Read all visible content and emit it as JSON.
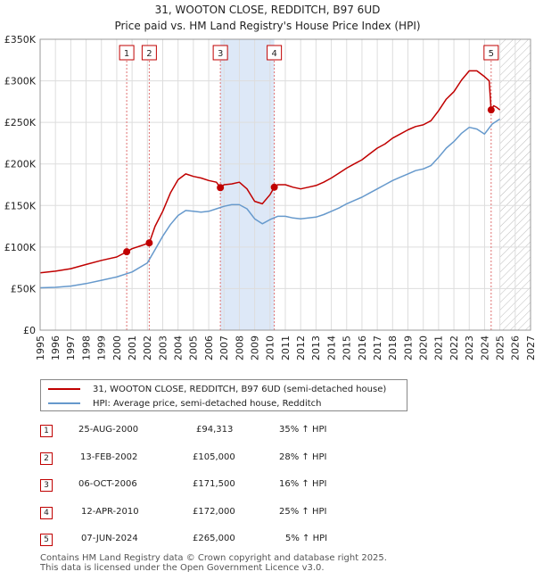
{
  "title": "31, WOOTON CLOSE, REDDITCH, B97 6UD",
  "subtitle": "Price paid vs. HM Land Registry's House Price Index (HPI)",
  "colors": {
    "property": "#c00000",
    "hpi": "#6699cc",
    "shade": "#dde8f7",
    "grid": "#dddddd",
    "marker_line": "#e07070"
  },
  "chart_data": {
    "type": "line",
    "title": "31, WOOTON CLOSE, REDDITCH, B97 6UD",
    "subtitle": "Price paid vs. HM Land Registry's House Price Index (HPI)",
    "xlim": [
      1995,
      2027
    ],
    "ylim": [
      0,
      350000
    ],
    "ytick_values": [
      0,
      50000,
      100000,
      150000,
      200000,
      250000,
      300000,
      350000
    ],
    "ytick_labels": [
      "£0",
      "£50K",
      "£100K",
      "£150K",
      "£200K",
      "£250K",
      "£300K",
      "£350K"
    ],
    "xtick_values": [
      1995,
      1996,
      1997,
      1998,
      1999,
      2000,
      2001,
      2002,
      2003,
      2004,
      2005,
      2006,
      2007,
      2008,
      2009,
      2010,
      2011,
      2012,
      2013,
      2014,
      2015,
      2016,
      2017,
      2018,
      2019,
      2020,
      2021,
      2022,
      2023,
      2024,
      2025,
      2026,
      2027
    ],
    "xtick_labels": [
      "1995",
      "1996",
      "1997",
      "1998",
      "1999",
      "2000",
      "2001",
      "2002",
      "2003",
      "2004",
      "2005",
      "2006",
      "2007",
      "2008",
      "2009",
      "2010",
      "2011",
      "2012",
      "2013",
      "2014",
      "2015",
      "2016",
      "2017",
      "2018",
      "2019",
      "2020",
      "2021",
      "2022",
      "2023",
      "2024",
      "2025",
      "2026",
      "2027"
    ],
    "shaded_range": [
      2006.76,
      2010.28
    ],
    "future_hatch_start": 2025.0,
    "series": [
      {
        "name": "31, WOOTON CLOSE, REDDITCH, B97 6UD (semi-detached house)",
        "x": [
          1995.0,
          1996.0,
          1997.0,
          1998.0,
          1999.0,
          2000.0,
          2000.65,
          2001.0,
          2001.5,
          2002.12,
          2002.5,
          2003.0,
          2003.5,
          2004.0,
          2004.5,
          2005.0,
          2005.5,
          2006.0,
          2006.5,
          2006.76,
          2007.0,
          2007.5,
          2008.0,
          2008.5,
          2009.0,
          2009.5,
          2010.0,
          2010.28,
          2010.5,
          2011.0,
          2011.5,
          2012.0,
          2012.5,
          2013.0,
          2013.5,
          2014.0,
          2014.5,
          2015.0,
          2015.5,
          2016.0,
          2016.5,
          2017.0,
          2017.5,
          2018.0,
          2018.5,
          2019.0,
          2019.5,
          2020.0,
          2020.5,
          2021.0,
          2021.5,
          2022.0,
          2022.5,
          2023.0,
          2023.5,
          2024.0,
          2024.3,
          2024.43,
          2024.6,
          2024.8,
          2025.0
        ],
        "values": [
          69000,
          71000,
          74000,
          79000,
          84000,
          88000,
          94313,
          98000,
          101000,
          105000,
          125000,
          143000,
          165000,
          181000,
          188000,
          185000,
          183000,
          180000,
          178000,
          171500,
          175000,
          176000,
          178000,
          170000,
          155000,
          152000,
          163000,
          172000,
          175000,
          175000,
          172000,
          170000,
          172000,
          174000,
          178000,
          183000,
          189000,
          195000,
          200000,
          205000,
          212000,
          219000,
          224000,
          231000,
          236000,
          241000,
          245000,
          247000,
          252000,
          264000,
          278000,
          287000,
          301000,
          312000,
          312000,
          305000,
          300000,
          265000,
          270000,
          268000,
          265000
        ]
      },
      {
        "name": "HPI: Average price, semi-detached house, Redditch",
        "x": [
          1995.0,
          1996.0,
          1997.0,
          1998.0,
          1999.0,
          2000.0,
          2001.0,
          2002.0,
          2002.5,
          2003.0,
          2003.5,
          2004.0,
          2004.5,
          2005.0,
          2005.5,
          2006.0,
          2006.5,
          2007.0,
          2007.5,
          2008.0,
          2008.5,
          2009.0,
          2009.5,
          2010.0,
          2010.5,
          2011.0,
          2011.5,
          2012.0,
          2012.5,
          2013.0,
          2013.5,
          2014.0,
          2014.5,
          2015.0,
          2015.5,
          2016.0,
          2016.5,
          2017.0,
          2017.5,
          2018.0,
          2018.5,
          2019.0,
          2019.5,
          2020.0,
          2020.5,
          2021.0,
          2021.5,
          2022.0,
          2022.5,
          2023.0,
          2023.5,
          2024.0,
          2024.5,
          2025.0
        ],
        "values": [
          51000,
          51500,
          53000,
          56000,
          60000,
          64000,
          70000,
          81000,
          97000,
          113000,
          127000,
          138000,
          144000,
          143000,
          142000,
          143000,
          146000,
          149000,
          151000,
          151000,
          146000,
          134000,
          128000,
          133000,
          137000,
          137000,
          135000,
          134000,
          135000,
          136000,
          139000,
          143000,
          147000,
          152000,
          156000,
          160000,
          165000,
          170000,
          175000,
          180000,
          184000,
          188000,
          192000,
          194000,
          198000,
          208000,
          219000,
          227000,
          237000,
          244000,
          242000,
          236000,
          248000,
          254000
        ]
      }
    ],
    "sales": [
      {
        "label": "1",
        "x": 2000.65,
        "value": 94313
      },
      {
        "label": "2",
        "x": 2002.12,
        "value": 105000
      },
      {
        "label": "3",
        "x": 2006.76,
        "value": 171500
      },
      {
        "label": "4",
        "x": 2010.28,
        "value": 172000
      },
      {
        "label": "5",
        "x": 2024.43,
        "value": 265000
      }
    ]
  },
  "legend": {
    "property_label": "31, WOOTON CLOSE, REDDITCH, B97 6UD (semi-detached house)",
    "hpi_label": "HPI: Average price, semi-detached house, Redditch"
  },
  "transactions": [
    {
      "num": "1",
      "date": "25-AUG-2000",
      "price": "£94,313",
      "hpi": "35% ↑ HPI"
    },
    {
      "num": "2",
      "date": "13-FEB-2002",
      "price": "£105,000",
      "hpi": "28% ↑ HPI"
    },
    {
      "num": "3",
      "date": "06-OCT-2006",
      "price": "£171,500",
      "hpi": "16% ↑ HPI"
    },
    {
      "num": "4",
      "date": "12-APR-2010",
      "price": "£172,000",
      "hpi": "25% ↑ HPI"
    },
    {
      "num": "5",
      "date": "07-JUN-2024",
      "price": "£265,000",
      "hpi": "5% ↑ HPI"
    }
  ],
  "footer": {
    "line1": "Contains HM Land Registry data © Crown copyright and database right 2025.",
    "line2": "This data is licensed under the Open Government Licence v3.0."
  }
}
